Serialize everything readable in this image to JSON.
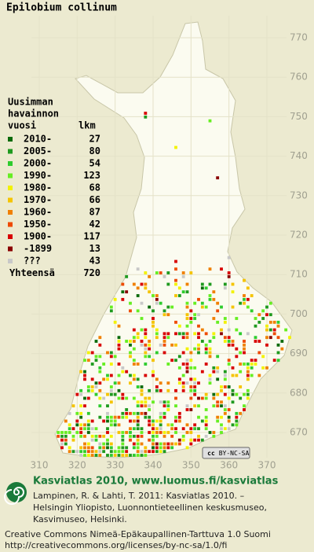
{
  "title": "Epilobium collinum",
  "legend": {
    "heading": [
      "Uusimman",
      "havainnon",
      "vuosi"
    ],
    "count_heading": "lkm",
    "items": [
      {
        "label": "2010-",
        "count": 27,
        "color": "#0b6b0b"
      },
      {
        "label": "2005-",
        "count": 80,
        "color": "#1f9a1f"
      },
      {
        "label": "2000-",
        "count": 54,
        "color": "#2ecc2e"
      },
      {
        "label": "1990-",
        "count": 123,
        "color": "#66ee22"
      },
      {
        "label": "1980-",
        "count": 68,
        "color": "#f2f200"
      },
      {
        "label": "1970-",
        "count": 66,
        "color": "#f5c400"
      },
      {
        "label": "1960-",
        "count": 87,
        "color": "#f08000"
      },
      {
        "label": "1950-",
        "count": 42,
        "color": "#ee4a00"
      },
      {
        "label": "1900-",
        "count": 117,
        "color": "#d80000"
      },
      {
        "label": "-1899",
        "count": 13,
        "color": "#8a0000"
      },
      {
        "label": "???",
        "count": 43,
        "color": "#c8c8c8"
      }
    ],
    "total_label": "Yhteensä",
    "total": 720
  },
  "axes": {
    "x_ticks": [
      310,
      320,
      330,
      340,
      350,
      360,
      370
    ],
    "y_ticks": [
      670,
      680,
      690,
      700,
      710,
      720,
      730,
      740,
      750,
      760,
      770
    ]
  },
  "license_badge": [
    "cc",
    "BY-NC-SA"
  ],
  "footer": {
    "title": "Kasviatlas 2010, www.luomus.fi/kasviatlas",
    "citation": [
      "Lampinen, R. & Lahti, T. 2011: Kasviatlas 2010. –",
      "Helsingin Yliopisto, Luonnontieteellinen keskusmuseo,",
      "Kasvimuseo, Helsinki."
    ],
    "license": [
      "Creative Commons Nimeä-Epäkaupallinen-Tarttuva 1.0 Suomi",
      "http://creativecommons.org/licenses/by-nc-sa/1.0/fi"
    ]
  }
}
